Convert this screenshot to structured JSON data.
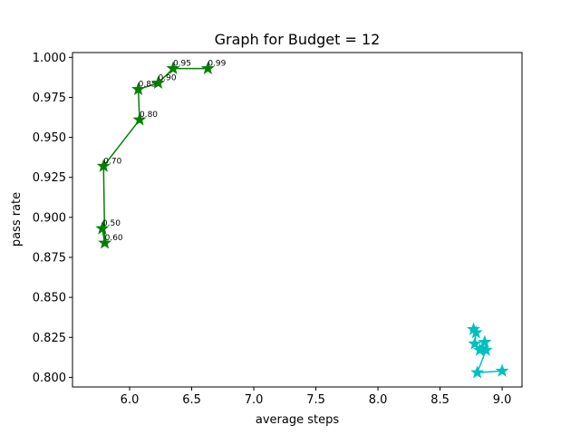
{
  "chart_data": {
    "type": "line",
    "title": "Graph for Budget = 12",
    "xlabel": "average steps",
    "ylabel": "pass rate",
    "xlim": [
      5.54,
      9.16
    ],
    "ylim": [
      0.794,
      1.003
    ],
    "xticks": [
      6.0,
      6.5,
      7.0,
      7.5,
      8.0,
      8.5,
      9.0
    ],
    "xtick_labels": [
      "6.0",
      "6.5",
      "7.0",
      "7.5",
      "8.0",
      "8.5",
      "9.0"
    ],
    "yticks": [
      0.8,
      0.825,
      0.85,
      0.875,
      0.9,
      0.925,
      0.95,
      0.975,
      1.0
    ],
    "ytick_labels": [
      "0.800",
      "0.825",
      "0.850",
      "0.875",
      "0.900",
      "0.925",
      "0.950",
      "0.975",
      "1.000"
    ],
    "grid": false,
    "series": [
      {
        "color": "#008000",
        "marker": "star",
        "points": [
          {
            "x": 5.78,
            "y": 0.893,
            "label": "0.50"
          },
          {
            "x": 5.8,
            "y": 0.884,
            "label": "0.60"
          },
          {
            "x": 5.79,
            "y": 0.932,
            "label": "0.70"
          },
          {
            "x": 6.08,
            "y": 0.961,
            "label": "0.80"
          },
          {
            "x": 6.07,
            "y": 0.98,
            "label": "0.85"
          },
          {
            "x": 6.23,
            "y": 0.984,
            "label": "0.90"
          },
          {
            "x": 6.35,
            "y": 0.993,
            "label": "0.95"
          },
          {
            "x": 6.63,
            "y": 0.993,
            "label": "0.99"
          }
        ]
      },
      {
        "color": "#00bfbf",
        "marker": "star",
        "points": [
          {
            "x": 8.77,
            "y": 0.83
          },
          {
            "x": 8.79,
            "y": 0.828
          },
          {
            "x": 8.78,
            "y": 0.821
          },
          {
            "x": 8.82,
            "y": 0.817
          },
          {
            "x": 8.86,
            "y": 0.822
          },
          {
            "x": 8.84,
            "y": 0.818
          },
          {
            "x": 8.87,
            "y": 0.817
          },
          {
            "x": 8.8,
            "y": 0.803
          },
          {
            "x": 9.0,
            "y": 0.804
          }
        ]
      }
    ]
  }
}
